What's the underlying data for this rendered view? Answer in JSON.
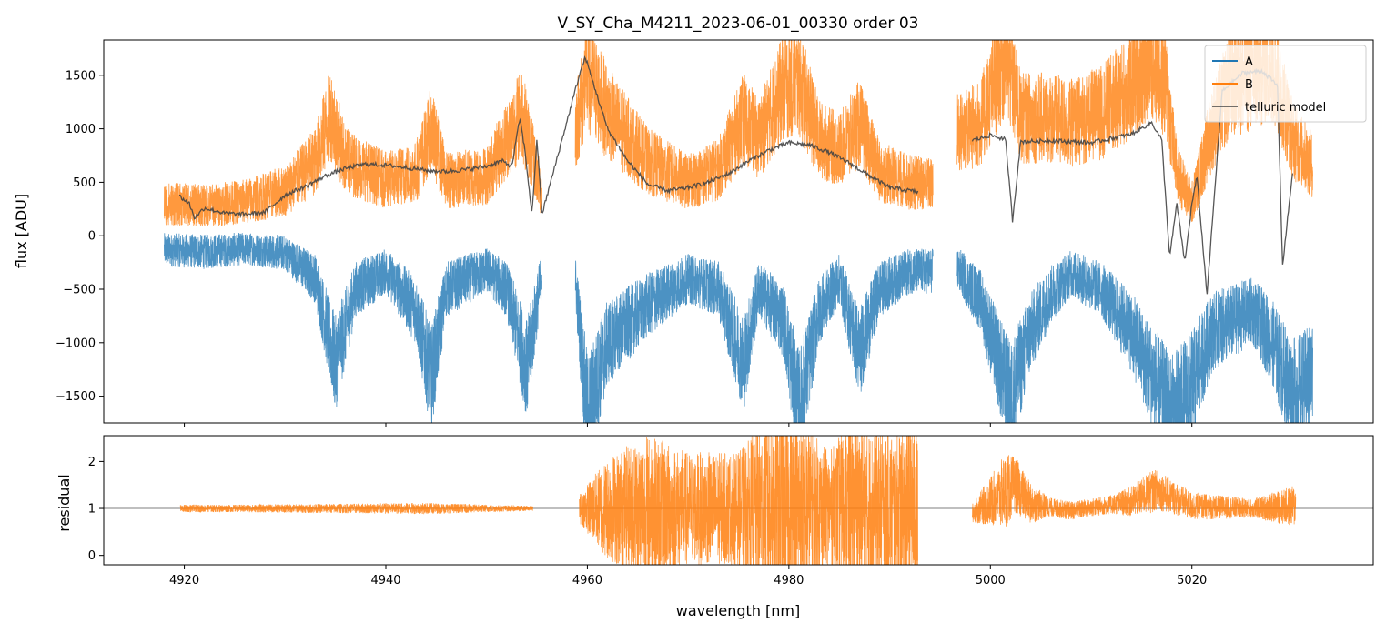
{
  "chart_data": [
    {
      "type": "line",
      "title": "V_SY_Cha_M4211_2023-06-01_00330  order 03",
      "xlabel": "",
      "ylabel": "flux [ADU]",
      "xlim": [
        4912,
        5038
      ],
      "ylim": [
        -1750,
        1830
      ],
      "yticks": [
        -1500,
        -1000,
        -500,
        0,
        500,
        1000,
        1500
      ],
      "yticklabels": [
        "−1500",
        "−1000",
        "−500",
        "0",
        "500",
        "1000",
        "1500"
      ],
      "xticks": [
        4920,
        4940,
        4960,
        4980,
        5000,
        5020
      ],
      "legend": {
        "placement": "top-right",
        "entries": [
          "A",
          "B",
          "telluric model"
        ]
      },
      "series": [
        {
          "name": "A",
          "color": "#1f77b4",
          "segments": [
            [
              4918.0,
              4955.5
            ],
            [
              4958.8,
              4994.3
            ],
            [
              4996.7,
              5032.0
            ]
          ],
          "envelope": [
            [
              4918,
              -130
            ],
            [
              4922,
              -150
            ],
            [
              4926,
              -120
            ],
            [
              4930,
              -160
            ],
            [
              4933,
              -400
            ],
            [
              4935,
              -1200
            ],
            [
              4937,
              -500
            ],
            [
              4940,
              -330
            ],
            [
              4943,
              -700
            ],
            [
              4944.5,
              -1350
            ],
            [
              4946,
              -500
            ],
            [
              4950,
              -320
            ],
            [
              4952,
              -500
            ],
            [
              4954,
              -1250
            ],
            [
              4955.5,
              -350
            ],
            [
              4958.8,
              -400
            ],
            [
              4960,
              -1700
            ],
            [
              4962,
              -1000
            ],
            [
              4966,
              -650
            ],
            [
              4970,
              -400
            ],
            [
              4973,
              -500
            ],
            [
              4975.5,
              -1200
            ],
            [
              4977,
              -500
            ],
            [
              4979.5,
              -800
            ],
            [
              4981,
              -1650
            ],
            [
              4983,
              -700
            ],
            [
              4985,
              -400
            ],
            [
              4987,
              -1100
            ],
            [
              4989,
              -500
            ],
            [
              4992,
              -330
            ],
            [
              4994.3,
              -330
            ],
            [
              4996.7,
              -300
            ],
            [
              4999,
              -600
            ],
            [
              5002,
              -1550
            ],
            [
              5004,
              -900
            ],
            [
              5006,
              -550
            ],
            [
              5008,
              -350
            ],
            [
              5011,
              -500
            ],
            [
              5014,
              -900
            ],
            [
              5016,
              -1300
            ],
            [
              5018,
              -1700
            ],
            [
              5020,
              -1400
            ],
            [
              5022,
              -900
            ],
            [
              5026,
              -700
            ],
            [
              5028,
              -1000
            ],
            [
              5030,
              -1500
            ],
            [
              5032,
              -1300
            ]
          ]
        },
        {
          "name": "B",
          "color": "#ff7f0e",
          "segments": [
            [
              4918.0,
              4955.5
            ],
            [
              4958.8,
              4994.3
            ],
            [
              4996.7,
              5032.0
            ]
          ],
          "envelope": [
            [
              4918,
              300
            ],
            [
              4922,
              280
            ],
            [
              4926,
              320
            ],
            [
              4930,
              420
            ],
            [
              4933,
              700
            ],
            [
              4934.5,
              1150
            ],
            [
              4936,
              700
            ],
            [
              4940,
              520
            ],
            [
              4943,
              600
            ],
            [
              4944.5,
              1000
            ],
            [
              4946,
              520
            ],
            [
              4950,
              560
            ],
            [
              4952,
              900
            ],
            [
              4953.5,
              1150
            ],
            [
              4955.5,
              380
            ],
            [
              4958.8,
              1000
            ],
            [
              4960,
              1500
            ],
            [
              4962,
              1150
            ],
            [
              4966,
              700
            ],
            [
              4970,
              500
            ],
            [
              4973,
              620
            ],
            [
              4975.5,
              1100
            ],
            [
              4977,
              900
            ],
            [
              4979.5,
              1400
            ],
            [
              4981,
              1450
            ],
            [
              4983,
              900
            ],
            [
              4985,
              800
            ],
            [
              4987,
              1050
            ],
            [
              4989,
              600
            ],
            [
              4992,
              500
            ],
            [
              4994.3,
              480
            ],
            [
              4996.7,
              950
            ],
            [
              4999,
              1050
            ],
            [
              5001.5,
              1700
            ],
            [
              5003,
              1100
            ],
            [
              5006,
              1100
            ],
            [
              5008,
              1050
            ],
            [
              5011,
              1150
            ],
            [
              5014,
              1400
            ],
            [
              5016,
              1700
            ],
            [
              5017.5,
              1350
            ],
            [
              5018.5,
              600
            ],
            [
              5020,
              300
            ],
            [
              5022,
              1000
            ],
            [
              5024,
              1450
            ],
            [
              5026,
              1500
            ],
            [
              5028,
              1650
            ],
            [
              5030,
              900
            ],
            [
              5032,
              650
            ]
          ]
        },
        {
          "name": "telluric model",
          "color": "#444444",
          "segments": [
            [
              4919.5,
              4992.8
            ],
            [
              4998.2,
              5030.0
            ]
          ],
          "points": [
            [
              4919.5,
              370
            ],
            [
              4920.5,
              300
            ],
            [
              4921,
              170
            ],
            [
              4922,
              260
            ],
            [
              4924,
              210
            ],
            [
              4926,
              200
            ],
            [
              4928,
              220
            ],
            [
              4930,
              380
            ],
            [
              4932,
              460
            ],
            [
              4934,
              560
            ],
            [
              4936,
              630
            ],
            [
              4938,
              670
            ],
            [
              4940,
              660
            ],
            [
              4942,
              640
            ],
            [
              4944,
              610
            ],
            [
              4946,
              600
            ],
            [
              4948,
              620
            ],
            [
              4950,
              650
            ],
            [
              4951.5,
              700
            ],
            [
              4952.5,
              650
            ],
            [
              4953.3,
              1100
            ],
            [
              4953.8,
              800
            ],
            [
              4954.5,
              200
            ],
            [
              4955,
              900
            ],
            [
              4955.5,
              200
            ],
            [
              4959.2,
              1500
            ],
            [
              4959.8,
              1670
            ],
            [
              4961,
              1300
            ],
            [
              4962,
              1000
            ],
            [
              4964,
              700
            ],
            [
              4966,
              480
            ],
            [
              4968,
              420
            ],
            [
              4970,
              450
            ],
            [
              4972,
              500
            ],
            [
              4974,
              580
            ],
            [
              4976,
              700
            ],
            [
              4978,
              800
            ],
            [
              4980,
              870
            ],
            [
              4982,
              850
            ],
            [
              4984,
              780
            ],
            [
              4986,
              680
            ],
            [
              4988,
              560
            ],
            [
              4990,
              450
            ],
            [
              4992.8,
              410
            ],
            [
              4998.2,
              890
            ],
            [
              5000,
              940
            ],
            [
              5001.5,
              900
            ],
            [
              5002.2,
              140
            ],
            [
              5003,
              880
            ],
            [
              5006,
              890
            ],
            [
              5010,
              870
            ],
            [
              5014,
              950
            ],
            [
              5016,
              1060
            ],
            [
              5017,
              900
            ],
            [
              5017.8,
              -200
            ],
            [
              5018.5,
              300
            ],
            [
              5019.3,
              -250
            ],
            [
              5020,
              300
            ],
            [
              5020.5,
              550
            ],
            [
              5021.5,
              -550
            ],
            [
              5023,
              1350
            ],
            [
              5025,
              1520
            ],
            [
              5027,
              1540
            ],
            [
              5028.5,
              1400
            ],
            [
              5029,
              -280
            ],
            [
              5030,
              600
            ]
          ]
        }
      ]
    },
    {
      "type": "line",
      "title": "",
      "xlabel": "wavelength [nm]",
      "ylabel": "residual",
      "xlim": [
        4912,
        5038
      ],
      "ylim": [
        -0.2,
        2.55
      ],
      "yticks": [
        0,
        1,
        2
      ],
      "yticklabels": [
        "0",
        "1",
        "2"
      ],
      "xticks": [
        4920,
        4940,
        4960,
        4980,
        5000,
        5020
      ],
      "xticklabels": [
        "4920",
        "4940",
        "4960",
        "4980",
        "5000",
        "5020"
      ],
      "reference_line": 1,
      "series": [
        {
          "name": "residual",
          "color": "#ff7f0e",
          "segments": [
            [
              4919.6,
              4954.6
            ],
            [
              4959.2,
              4992.8
            ],
            [
              4998.2,
              5030.3
            ]
          ],
          "envelope": [
            [
              4919.6,
              0.08
            ],
            [
              4925,
              0.08
            ],
            [
              4935,
              0.1
            ],
            [
              4944,
              0.12
            ],
            [
              4954.6,
              0.05
            ],
            [
              4959.2,
              0.3
            ],
            [
              4962,
              1.1
            ],
            [
              4966,
              1.6
            ],
            [
              4970,
              1.2
            ],
            [
              4975,
              1.2
            ],
            [
              4978,
              2.0
            ],
            [
              4981,
              2.0
            ],
            [
              4984,
              1.2
            ],
            [
              4986,
              1.9
            ],
            [
              4989,
              1.6
            ],
            [
              4992.8,
              1.8
            ],
            [
              4998.2,
              0.2
            ],
            [
              5001.5,
              0.8
            ],
            [
              5002.5,
              0.6
            ],
            [
              5006,
              0.2
            ],
            [
              5012,
              0.2
            ],
            [
              5016,
              0.45
            ],
            [
              5020,
              0.3
            ],
            [
              5026,
              0.2
            ],
            [
              5030.3,
              0.45
            ]
          ],
          "center": [
            [
              4919.6,
              1.0
            ],
            [
              4954.6,
              1.0
            ],
            [
              4959.2,
              1.0
            ],
            [
              4992.8,
              1.0
            ],
            [
              4998.2,
              0.9
            ],
            [
              5001,
              1.3
            ],
            [
              5002.5,
              1.5
            ],
            [
              5004,
              1.1
            ],
            [
              5008,
              0.95
            ],
            [
              5014,
              1.15
            ],
            [
              5016.5,
              1.4
            ],
            [
              5020,
              1.05
            ],
            [
              5026,
              1.0
            ],
            [
              5030.3,
              1.05
            ]
          ]
        }
      ]
    }
  ]
}
